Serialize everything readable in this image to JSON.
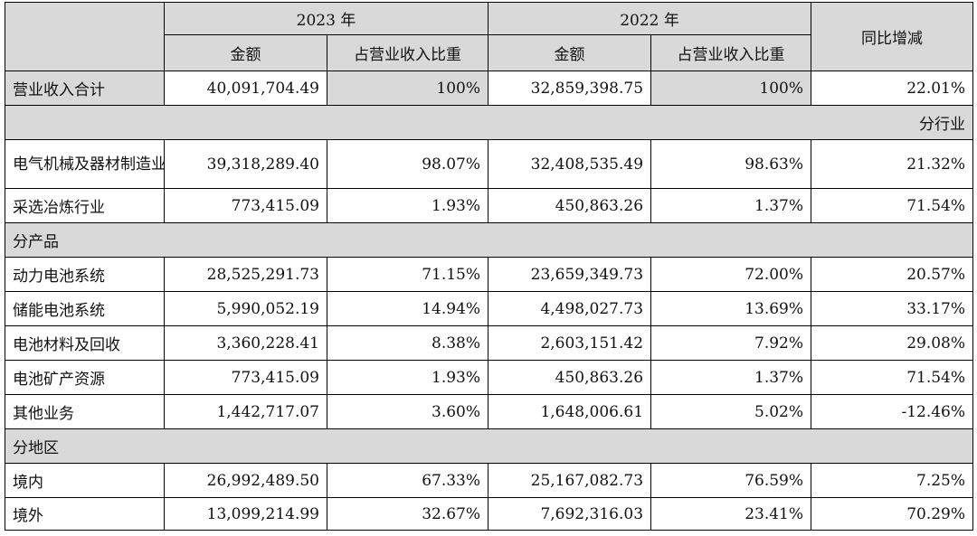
{
  "header": {
    "year_2023": "2023 年",
    "year_2022": "2022 年",
    "amount": "金额",
    "share": "占营业收入比重",
    "yoy": "同比增减"
  },
  "total": {
    "label": "营业收入合计",
    "amt_2023": "40,091,704.49",
    "pct_2023": "100%",
    "amt_2022": "32,859,398.75",
    "pct_2022": "100%",
    "yoy": "22.01%"
  },
  "sections": {
    "by_industry": "分行业",
    "by_product": "分产品",
    "by_region": "分地区"
  },
  "industry_rows": [
    {
      "label": "电气机械及器材制造业",
      "amt_2023": "39,318,289.40",
      "pct_2023": "98.07%",
      "amt_2022": "32,408,535.49",
      "pct_2022": "98.63%",
      "yoy": "21.32%"
    },
    {
      "label": "采选冶炼行业",
      "amt_2023": "773,415.09",
      "pct_2023": "1.93%",
      "amt_2022": "450,863.26",
      "pct_2022": "1.37%",
      "yoy": "71.54%"
    }
  ],
  "product_rows": [
    {
      "label": "动力电池系统",
      "amt_2023": "28,525,291.73",
      "pct_2023": "71.15%",
      "amt_2022": "23,659,349.73",
      "pct_2022": "72.00%",
      "yoy": "20.57%"
    },
    {
      "label": "储能电池系统",
      "amt_2023": "5,990,052.19",
      "pct_2023": "14.94%",
      "amt_2022": "4,498,027.73",
      "pct_2022": "13.69%",
      "yoy": "33.17%"
    },
    {
      "label": "电池材料及回收",
      "amt_2023": "3,360,228.41",
      "pct_2023": "8.38%",
      "amt_2022": "2,603,151.42",
      "pct_2022": "7.92%",
      "yoy": "29.08%"
    },
    {
      "label": "电池矿产资源",
      "amt_2023": "773,415.09",
      "pct_2023": "1.93%",
      "amt_2022": "450,863.26",
      "pct_2022": "1.37%",
      "yoy": "71.54%"
    },
    {
      "label": "其他业务",
      "amt_2023": "1,442,717.07",
      "pct_2023": "3.60%",
      "amt_2022": "1,648,006.61",
      "pct_2022": "5.02%",
      "yoy": "-12.46%"
    }
  ],
  "region_rows": [
    {
      "label": "境内",
      "amt_2023": "26,992,489.50",
      "pct_2023": "67.33%",
      "amt_2022": "25,167,082.73",
      "pct_2022": "76.59%",
      "yoy": "7.25%"
    },
    {
      "label": "境外",
      "amt_2023": "13,099,214.99",
      "pct_2023": "32.67%",
      "amt_2022": "7,692,316.03",
      "pct_2022": "23.41%",
      "yoy": "70.29%"
    }
  ]
}
